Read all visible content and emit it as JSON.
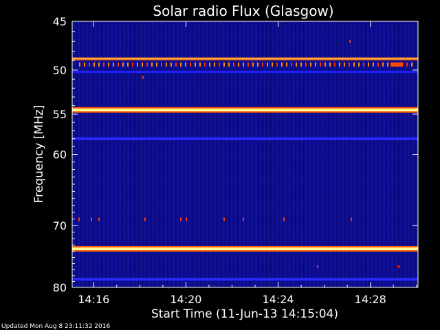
{
  "chart_data": {
    "type": "heatmap",
    "title": "Solar radio Flux (Glasgow)",
    "xlabel": "Start Time (11-Jun-13 14:15:04)",
    "ylabel": "Frequency [MHz]",
    "x_ticks": [
      "14:16",
      "14:20",
      "14:24",
      "14:28"
    ],
    "y_ticks": [
      45,
      50,
      55,
      60,
      70,
      80
    ],
    "ylim": [
      45,
      80
    ],
    "y_scale": "log",
    "xlim": [
      "14:15:04",
      "14:30:04"
    ],
    "colormap": [
      "#000033",
      "#0a0a8c",
      "#1a1ad0",
      "#ff2a00",
      "#ff8a00",
      "#ffff80"
    ],
    "bands": [
      {
        "freq_mhz": 48.8,
        "level": "orange"
      },
      {
        "freq_mhz": 49.4,
        "level": "orange-dots"
      },
      {
        "freq_mhz": 50.2,
        "level": "red"
      },
      {
        "freq_mhz": 54.5,
        "level": "yellow"
      },
      {
        "freq_mhz": 58.0,
        "level": "blue"
      },
      {
        "freq_mhz": 69.0,
        "level": "red-dots"
      },
      {
        "freq_mhz": 73.6,
        "level": "yellow"
      },
      {
        "freq_mhz": 78.6,
        "level": "blue"
      }
    ]
  },
  "footer": {
    "updated": "Updated Mon Aug  8 23:11:32 2016"
  }
}
